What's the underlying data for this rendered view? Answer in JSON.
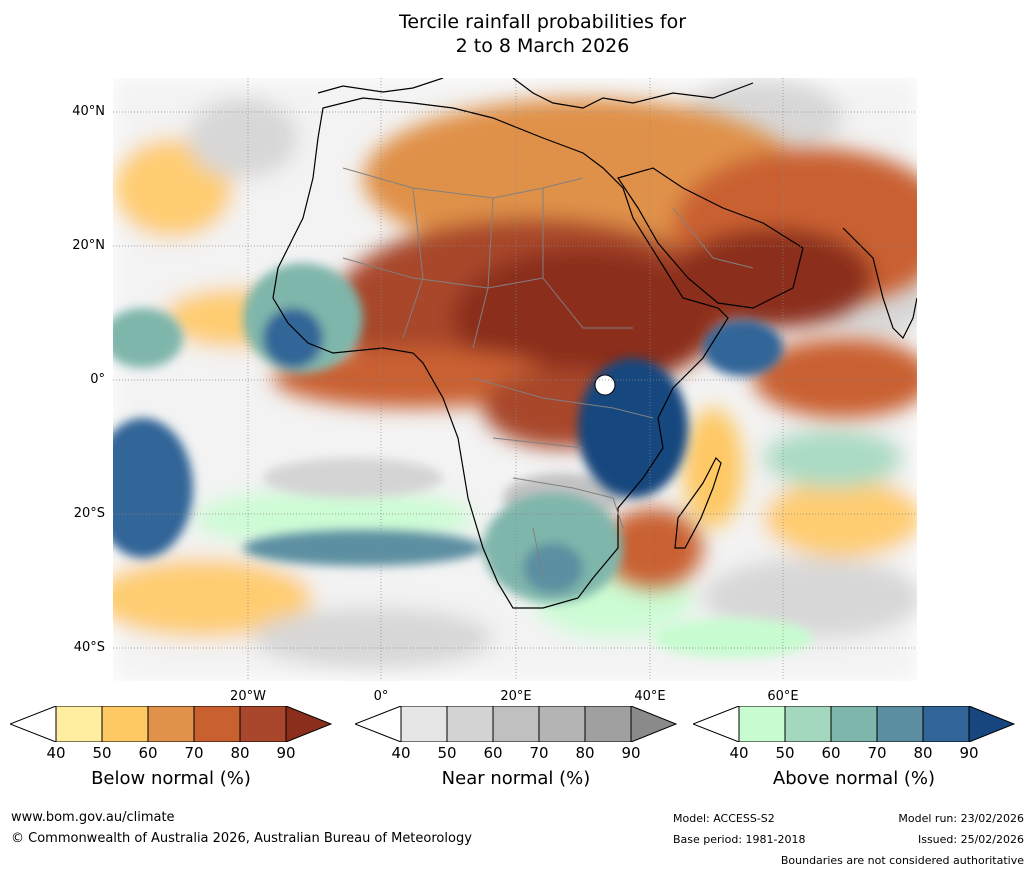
{
  "title": {
    "line1": "Tercile rainfall probabilities for",
    "line2": "2 to 8 March 2026"
  },
  "map": {
    "lat_labels": [
      "40°N",
      "20°N",
      "0°",
      "20°S",
      "40°S"
    ],
    "lon_labels": [
      "20°W",
      "0°",
      "20°E",
      "40°E",
      "60°E"
    ],
    "colors": {
      "ocean_background": "#ffffff",
      "gridline": "#888888",
      "coastline": "#000000",
      "borders": "#808080"
    }
  },
  "legends": [
    {
      "title": "Below normal (%)",
      "ticks": [
        "40",
        "50",
        "60",
        "70",
        "80",
        "90"
      ],
      "colors": [
        "#ffffff",
        "#ffeda0",
        "#fec863",
        "#e0914a",
        "#c96030",
        "#a8472c",
        "#8b2f1c"
      ]
    },
    {
      "title": "Near normal (%)",
      "ticks": [
        "40",
        "50",
        "60",
        "70",
        "80",
        "90"
      ],
      "colors": [
        "#ffffff",
        "#e6e6e6",
        "#d3d3d3",
        "#c0c0c0",
        "#b4b4b4",
        "#a0a0a0",
        "#8a8a8a"
      ]
    },
    {
      "title": "Above normal (%)",
      "ticks": [
        "40",
        "50",
        "60",
        "70",
        "80",
        "90"
      ],
      "colors": [
        "#ffffff",
        "#c7fcd0",
        "#a3d8be",
        "#7fb6ab",
        "#5b8fa1",
        "#326598",
        "#17467e"
      ]
    }
  ],
  "footer": {
    "website": "www.bom.gov.au/climate",
    "copyright": "© Commonwealth of Australia 2026, Australian Bureau of Meteorology",
    "model": "Model: ACCESS-S2",
    "base_period": "Base period: 1981-2018",
    "model_run": "Model run: 23/02/2026",
    "issued": "Issued: 25/02/2026",
    "disclaimer": "Boundaries are not considered authoritative"
  }
}
